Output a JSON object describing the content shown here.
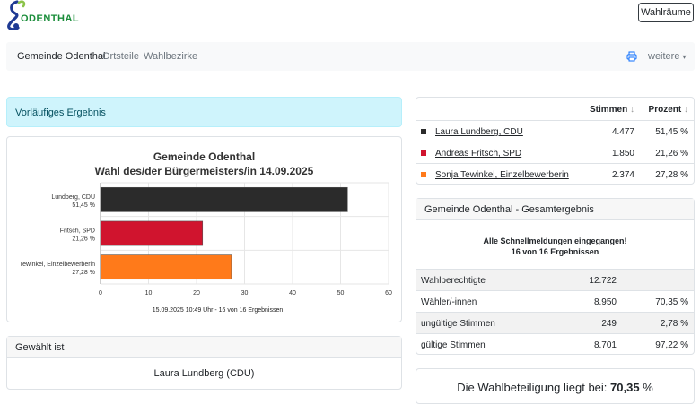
{
  "header": {
    "logo_text": "ODENTHAL",
    "wahlraeume_label": "Wahlräume"
  },
  "nav": {
    "items": [
      "Gemeinde Odenthal",
      "Ortsteile",
      "Wahlbezirke"
    ],
    "more_label": "weitere"
  },
  "alert": {
    "text": "Vorläufiges Ergebnis"
  },
  "chart": {
    "title_line1": "Gemeinde Odenthal",
    "title_line2": "Wahl des/der Bürgermeisters/in 14.09.2025",
    "footer": "15.09.2025 10:49 Uhr - 16 von 16 Ergebnissen"
  },
  "chart_data": {
    "type": "bar",
    "orientation": "horizontal",
    "title": "Gemeinde Odenthal Wahl des/der Bürgermeisters/in 14.09.2025",
    "categories": [
      {
        "name": "Lundberg, CDU",
        "pct_label": "51,45 %"
      },
      {
        "name": "Fritsch, SPD",
        "pct_label": "21,26 %"
      },
      {
        "name": "Tewinkel, Einzelbewerberin",
        "pct_label": "27,28 %"
      }
    ],
    "values": [
      51.45,
      21.26,
      27.28
    ],
    "colors": [
      "#2b2b2b",
      "#d0142e",
      "#ff7a1a"
    ],
    "xlim": [
      0,
      60
    ],
    "xticks": [
      "0",
      "10",
      "20",
      "30",
      "40",
      "50",
      "60"
    ],
    "grid": true
  },
  "gewaehlt": {
    "header": "Gewählt ist",
    "name": "Laura Lundberg (CDU)"
  },
  "results": {
    "col_stimmen": "Stimmen",
    "col_prozent": "Prozent",
    "sort_icon": "↓",
    "rows": [
      {
        "name": "Laura Lundberg, CDU",
        "stimmen": "4.477",
        "prozent": "51,45 %",
        "color": "#2b2b2b"
      },
      {
        "name": "Andreas Fritsch, SPD",
        "stimmen": "1.850",
        "prozent": "21,26 %",
        "color": "#d0142e"
      },
      {
        "name": "Sonja Tewinkel, Einzelbewerberin",
        "stimmen": "2.374",
        "prozent": "27,28 %",
        "color": "#ff7a1a"
      }
    ]
  },
  "gesamt": {
    "header": "Gemeinde Odenthal - Gesamtergebnis",
    "msg1": "Alle Schnellmeldungen eingegangen!",
    "msg2": "16 von 16 Ergebnissen",
    "rows": [
      {
        "label": "Wahlberechtigte",
        "value": "12.722",
        "pct": ""
      },
      {
        "label": "Wähler/-innen",
        "value": "8.950",
        "pct": "70,35 %"
      },
      {
        "label": "ungültige Stimmen",
        "value": "249",
        "pct": "2,78 %"
      },
      {
        "label": "gültige Stimmen",
        "value": "8.701",
        "pct": "97,22 %"
      }
    ]
  },
  "beteiligung": {
    "prefix": "Die Wahlbeteiligung liegt bei:",
    "value": "70,35",
    "unit": "%"
  }
}
